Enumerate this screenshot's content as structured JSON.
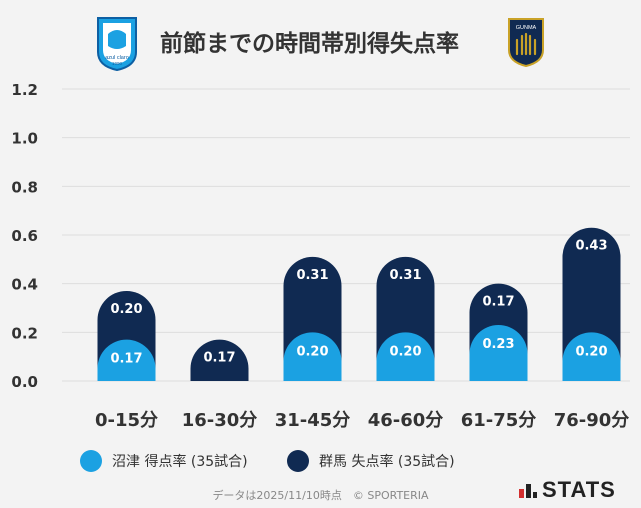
{
  "title": "前節までの時間帯別得失点率",
  "logos": {
    "left_alt": "azul claro",
    "left_subtext": "1990",
    "right_alt": "GUNMA"
  },
  "colors": {
    "numazu": "#1ba1e2",
    "gunma": "#102a52",
    "grid": "#dddddd",
    "background": "#f3f3f3"
  },
  "chart_data": {
    "type": "bar",
    "title": "前節までの時間帯別得失点率",
    "categories": [
      "0-15分",
      "16-30分",
      "31-45分",
      "46-60分",
      "61-75分",
      "76-90分"
    ],
    "series": [
      {
        "name": "沼津 得点率 (35試合)",
        "values": [
          0.17,
          null,
          0.2,
          0.2,
          0.23,
          0.2
        ]
      },
      {
        "name": "群馬 失点率 (35試合)",
        "values": [
          0.2,
          0.17,
          0.31,
          0.31,
          0.17,
          0.43
        ]
      }
    ],
    "yticks": [
      "0.0",
      "0.2",
      "0.4",
      "0.6",
      "0.8",
      "1.0",
      "1.2"
    ],
    "ylim": [
      0,
      1.2
    ],
    "stacked": true,
    "grid": true,
    "legend_position": "bottom"
  },
  "legend": {
    "items": [
      {
        "label": "沼津 得点率 (35試合)"
      },
      {
        "label": "群馬 失点率 (35試合)"
      }
    ]
  },
  "footer": {
    "note": "データは2025/11/10時点　© SPORTERIA",
    "brand": "STATS"
  }
}
